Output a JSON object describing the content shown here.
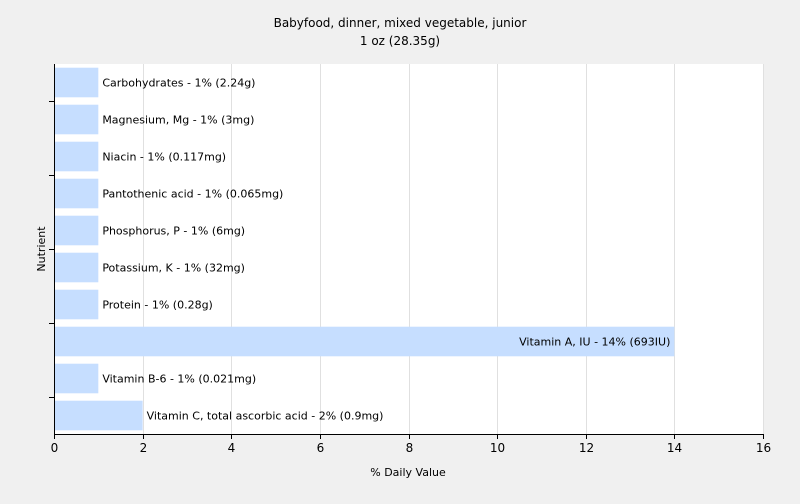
{
  "chart_data": {
    "type": "bar",
    "orientation": "horizontal",
    "title": "Babyfood, dinner, mixed vegetable, junior",
    "subtitle": "1 oz (28.35g)",
    "xlabel": "% Daily Value",
    "ylabel": "Nutrient",
    "xlim": [
      0,
      16
    ],
    "xticks": [
      0,
      2,
      4,
      6,
      8,
      10,
      12,
      14,
      16
    ],
    "grid": true,
    "legend": "none",
    "bar_color": "#c6deff",
    "categories": [
      "Carbohydrates - 1% (2.24g)",
      "Magnesium, Mg - 1% (3mg)",
      "Niacin - 1% (0.117mg)",
      "Pantothenic acid - 1% (0.065mg)",
      "Phosphorus, P - 1% (6mg)",
      "Potassium, K - 1% (32mg)",
      "Protein - 1% (0.28g)",
      "Vitamin A, IU - 14% (693IU)",
      "Vitamin B-6 - 1% (0.021mg)",
      "Vitamin C, total ascorbic acid - 2% (0.9mg)"
    ],
    "values": [
      1,
      1,
      1,
      1,
      1,
      1,
      1,
      14,
      1,
      2
    ]
  }
}
